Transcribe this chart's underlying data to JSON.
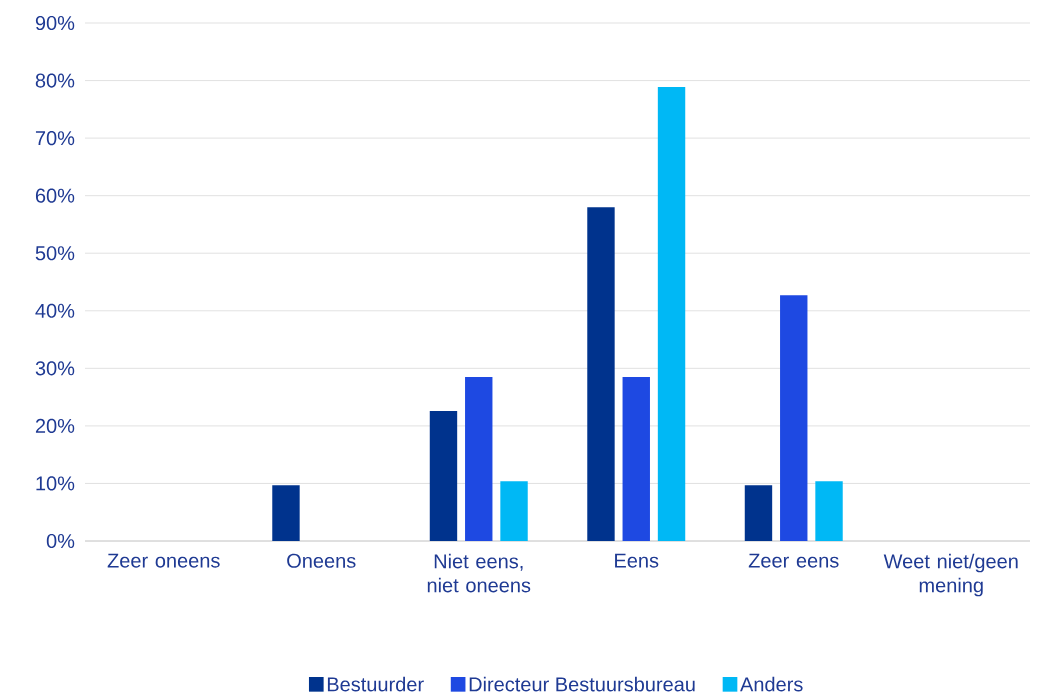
{
  "chart_data": {
    "type": "bar",
    "categories": [
      "Zeer oneens",
      "Oneens",
      "Niet eens, niet oneens",
      "Eens",
      "Zeer eens",
      "Weet niet/geen mening"
    ],
    "series": [
      {
        "name": "Bestuurder",
        "color": "#00338d",
        "values": [
          0,
          9.7,
          22.6,
          58.0,
          9.7,
          0
        ]
      },
      {
        "name": "Directeur Bestuursbureau",
        "color": "#1e49e2",
        "values": [
          0,
          0,
          28.5,
          28.5,
          42.7,
          0
        ]
      },
      {
        "name": "Anders",
        "color": "#00b8f5",
        "values": [
          0,
          0,
          10.4,
          78.9,
          10.4,
          0
        ]
      }
    ],
    "ylim": [
      0,
      90
    ],
    "yticks": [
      {
        "value": 0,
        "label": "0%"
      },
      {
        "value": 10,
        "label": "10%"
      },
      {
        "value": 20,
        "label": "20%"
      },
      {
        "value": 30,
        "label": "30%"
      },
      {
        "value": 40,
        "label": "40%"
      },
      {
        "value": 50,
        "label": "50%"
      },
      {
        "value": 60,
        "label": "60%"
      },
      {
        "value": 70,
        "label": "70%"
      },
      {
        "value": 80,
        "label": "80%"
      },
      {
        "value": 90,
        "label": "90%"
      }
    ],
    "grid": "y",
    "legend": "bottom"
  }
}
